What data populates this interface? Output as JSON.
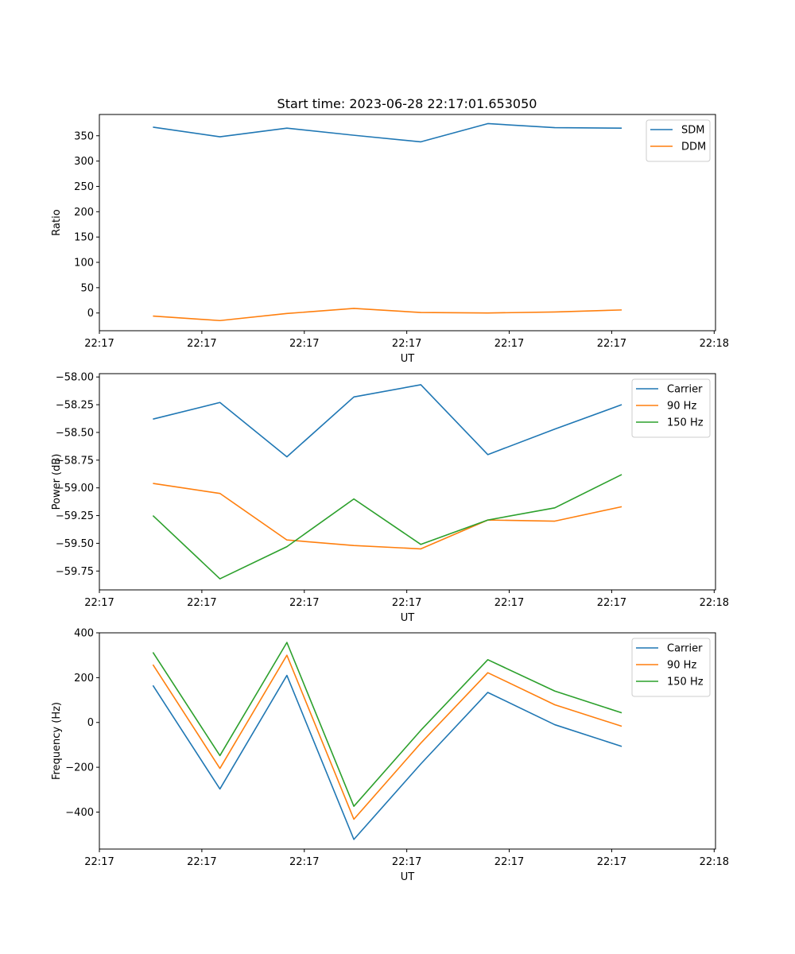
{
  "figure": {
    "title": "Start time: 2023-06-28 22:17:01.653050"
  },
  "chart_data": [
    {
      "type": "line",
      "title": "Start time: 2023-06-28 22:17:01.653050",
      "xlabel": "UT",
      "ylabel": "Ratio",
      "x": [
        1,
        2,
        3,
        4,
        5,
        6,
        7,
        8
      ],
      "xlim": [
        0.2,
        9.4
      ],
      "x_ticks": [
        {
          "value": 0.2,
          "label": "22:17"
        },
        {
          "value": 1.73,
          "label": "22:17"
        },
        {
          "value": 3.26,
          "label": "22:17"
        },
        {
          "value": 4.79,
          "label": "22:17"
        },
        {
          "value": 6.32,
          "label": "22:17"
        },
        {
          "value": 7.85,
          "label": "22:17"
        },
        {
          "value": 9.38,
          "label": "22:18"
        }
      ],
      "ylim": [
        -35,
        392
      ],
      "y_ticks": [
        0,
        50,
        100,
        150,
        200,
        250,
        300,
        350
      ],
      "y_tick_labels": [
        "0",
        "50",
        "100",
        "150",
        "200",
        "250",
        "300",
        "350"
      ],
      "legend": "top-right",
      "grid": false,
      "series": [
        {
          "name": "SDM",
          "color": "#1f77b4",
          "values": [
            367,
            348,
            365,
            351,
            338,
            374,
            366,
            365
          ]
        },
        {
          "name": "DDM",
          "color": "#ff7f0e",
          "values": [
            -6,
            -15,
            -1,
            9,
            1,
            0,
            2,
            6
          ]
        }
      ]
    },
    {
      "type": "line",
      "title": "",
      "xlabel": "UT",
      "ylabel": "Power (dB)",
      "x": [
        1,
        2,
        3,
        4,
        5,
        6,
        7,
        8
      ],
      "xlim": [
        0.2,
        9.4
      ],
      "x_ticks": [
        {
          "value": 0.2,
          "label": "22:17"
        },
        {
          "value": 1.73,
          "label": "22:17"
        },
        {
          "value": 3.26,
          "label": "22:17"
        },
        {
          "value": 4.79,
          "label": "22:17"
        },
        {
          "value": 6.32,
          "label": "22:17"
        },
        {
          "value": 7.85,
          "label": "22:17"
        },
        {
          "value": 9.38,
          "label": "22:18"
        }
      ],
      "ylim": [
        -59.92,
        -57.97
      ],
      "y_ticks": [
        -59.75,
        -59.5,
        -59.25,
        -59.0,
        -58.75,
        -58.5,
        -58.25,
        -58.0
      ],
      "y_tick_labels": [
        "−59.75",
        "−59.50",
        "−59.25",
        "−59.00",
        "−58.75",
        "−58.50",
        "−58.25",
        "−58.00"
      ],
      "legend": "top-right",
      "grid": false,
      "series": [
        {
          "name": "Carrier",
          "color": "#1f77b4",
          "values": [
            -58.38,
            -58.23,
            -58.72,
            -58.18,
            -58.07,
            -58.7,
            -58.47,
            -58.25
          ]
        },
        {
          "name": "90 Hz",
          "color": "#ff7f0e",
          "values": [
            -58.96,
            -59.05,
            -59.47,
            -59.52,
            -59.55,
            -59.29,
            -59.3,
            -59.17
          ]
        },
        {
          "name": "150 Hz",
          "color": "#2ca02c",
          "values": [
            -59.25,
            -59.82,
            -59.53,
            -59.1,
            -59.51,
            -59.29,
            -59.18,
            -58.88
          ]
        }
      ]
    },
    {
      "type": "line",
      "title": "",
      "xlabel": "UT",
      "ylabel": "Frequency (Hz)",
      "x": [
        1,
        2,
        3,
        4,
        5,
        6,
        7,
        8
      ],
      "xlim": [
        0.2,
        9.4
      ],
      "x_ticks": [
        {
          "value": 0.2,
          "label": "22:17"
        },
        {
          "value": 1.73,
          "label": "22:17"
        },
        {
          "value": 3.26,
          "label": "22:17"
        },
        {
          "value": 4.79,
          "label": "22:17"
        },
        {
          "value": 6.32,
          "label": "22:17"
        },
        {
          "value": 7.85,
          "label": "22:17"
        },
        {
          "value": 9.38,
          "label": "22:18"
        }
      ],
      "ylim": [
        -565,
        400
      ],
      "y_ticks": [
        -400,
        -200,
        0,
        200,
        400
      ],
      "y_tick_labels": [
        "−400",
        "−200",
        "0",
        "200",
        "400"
      ],
      "legend": "top-right",
      "grid": false,
      "series": [
        {
          "name": "Carrier",
          "color": "#1f77b4",
          "values": [
            165,
            -297,
            210,
            -522,
            -185,
            134,
            -10,
            -107
          ]
        },
        {
          "name": "90 Hz",
          "color": "#ff7f0e",
          "values": [
            258,
            -205,
            300,
            -432,
            -92,
            222,
            79,
            -17
          ]
        },
        {
          "name": "150 Hz",
          "color": "#2ca02c",
          "values": [
            313,
            -148,
            357,
            -374,
            -35,
            280,
            140,
            43
          ]
        }
      ]
    }
  ]
}
